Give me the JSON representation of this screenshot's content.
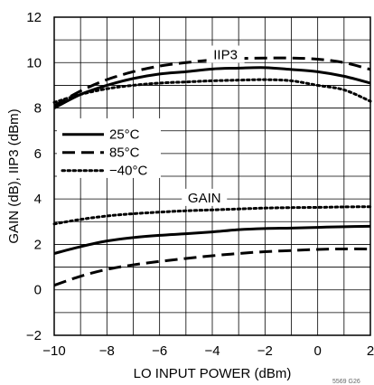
{
  "chart_data": {
    "type": "line",
    "xlabel": "LO INPUT POWER (dBm)",
    "ylabel": "GAIN (dB), IIP3 (dBm)",
    "xlim": [
      -10,
      2
    ],
    "ylim": [
      -2,
      12
    ],
    "xticks": [
      "−10",
      "−8",
      "−6",
      "−4",
      "−2",
      "0",
      "2"
    ],
    "yticks": [
      "−2",
      "0",
      "2",
      "4",
      "6",
      "8",
      "10",
      "12"
    ],
    "grid": true,
    "legend": {
      "placement": "middle-left"
    },
    "annotations": {
      "iip3": "IIP3",
      "gain": "GAIN"
    },
    "figure_id": "5569 G26",
    "series": [
      {
        "name": "25°C",
        "group": "IIP3",
        "style": "solid",
        "x": [
          -10,
          -9,
          -8,
          -7,
          -6,
          -5,
          -4,
          -3,
          -2,
          -1,
          0,
          1,
          2
        ],
        "y": [
          8.0,
          8.6,
          9.0,
          9.3,
          9.5,
          9.6,
          9.72,
          9.76,
          9.78,
          9.7,
          9.6,
          9.4,
          9.1
        ]
      },
      {
        "name": "85°C",
        "group": "IIP3",
        "style": "dashed",
        "x": [
          -10,
          -9,
          -8,
          -7,
          -6,
          -5,
          -4,
          -3,
          -2,
          -1,
          0,
          1,
          2
        ],
        "y": [
          8.1,
          8.75,
          9.25,
          9.6,
          9.85,
          10.0,
          10.12,
          10.18,
          10.2,
          10.2,
          10.15,
          10.0,
          9.7
        ]
      },
      {
        "name": "−40°C",
        "group": "IIP3",
        "style": "dotted",
        "x": [
          -10,
          -9,
          -8,
          -7,
          -6,
          -5,
          -4,
          -3,
          -2,
          -1,
          0,
          1,
          2
        ],
        "y": [
          8.25,
          8.6,
          8.85,
          9.0,
          9.1,
          9.15,
          9.2,
          9.23,
          9.25,
          9.2,
          9.0,
          8.8,
          8.3
        ]
      },
      {
        "name": "25°C",
        "group": "GAIN",
        "style": "solid",
        "x": [
          -10,
          -9,
          -8,
          -7,
          -6,
          -5,
          -4,
          -3,
          -2,
          -1,
          0,
          1,
          2
        ],
        "y": [
          1.6,
          1.9,
          2.15,
          2.3,
          2.4,
          2.47,
          2.55,
          2.65,
          2.7,
          2.72,
          2.75,
          2.78,
          2.8
        ]
      },
      {
        "name": "85°C",
        "group": "GAIN",
        "style": "dashed",
        "x": [
          -10,
          -9,
          -8,
          -7,
          -6,
          -5,
          -4,
          -3,
          -2,
          -1,
          0,
          1,
          2
        ],
        "y": [
          0.2,
          0.6,
          0.9,
          1.1,
          1.25,
          1.38,
          1.5,
          1.6,
          1.68,
          1.73,
          1.78,
          1.8,
          1.8
        ]
      },
      {
        "name": "−40°C",
        "group": "GAIN",
        "style": "dotted",
        "x": [
          -10,
          -9,
          -8,
          -7,
          -6,
          -5,
          -4,
          -3,
          -2,
          -1,
          0,
          1,
          2
        ],
        "y": [
          2.9,
          3.1,
          3.25,
          3.35,
          3.42,
          3.48,
          3.52,
          3.56,
          3.6,
          3.62,
          3.63,
          3.65,
          3.66
        ]
      }
    ],
    "legend_entries": [
      {
        "label": "25°C",
        "style": "solid"
      },
      {
        "label": "85°C",
        "style": "dashed"
      },
      {
        "label": "−40°C",
        "style": "dotted"
      }
    ]
  }
}
